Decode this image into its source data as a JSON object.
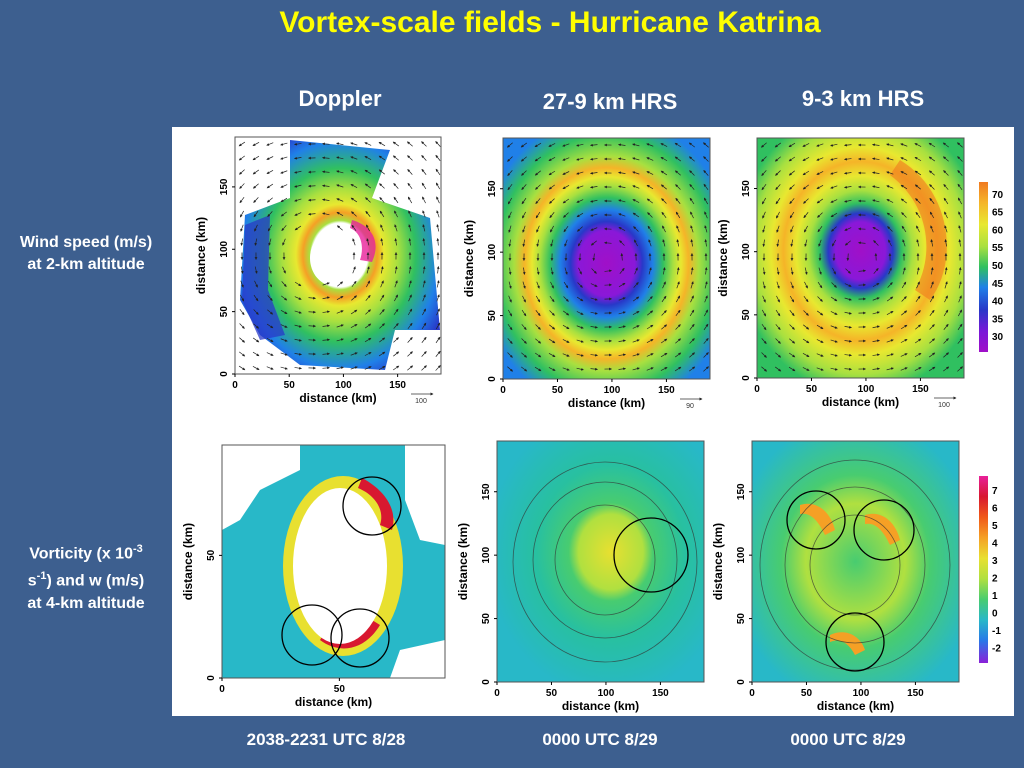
{
  "title": "Vortex-scale fields - Hurricane Katrina",
  "columns": [
    "Doppler",
    "27-9 km HRS",
    "9-3 km HRS"
  ],
  "row_labels": {
    "wind": [
      "Wind speed (m/s)",
      "at 2-km altitude"
    ],
    "vort": {
      "line1_pre": "Vorticity (x 10",
      "line1_sup": "-3",
      "line2_pre": "s",
      "line2_sup": "-1",
      "line2_post": ") and w (m/s)",
      "line3": "at 4-km altitude"
    }
  },
  "times": [
    "2038-2231 UTC 8/28",
    "0000 UTC 8/29",
    "0000 UTC 8/29"
  ],
  "colors": {
    "background": "#3d5f8f",
    "title": "#ffff00"
  },
  "chart_data": [
    {
      "type": "heatmap",
      "panel": "Doppler wind speed at 2-km altitude",
      "xlabel": "distance (km)",
      "ylabel": "distance (km)",
      "xticks": [
        "0",
        "50",
        "100",
        "150"
      ],
      "yticks": [
        "0",
        "50",
        "100",
        "150"
      ],
      "xlim": [
        0,
        190
      ],
      "ylim": [
        0,
        190
      ],
      "center_km": [
        75,
        95
      ],
      "vector_reference": "100"
    },
    {
      "type": "heatmap",
      "panel": "27-9 km HRS wind speed at 2-km altitude",
      "xlabel": "distance (km)",
      "ylabel": "distance (km)",
      "xticks": [
        "0",
        "50",
        "100",
        "150"
      ],
      "yticks": [
        "0",
        "50",
        "100",
        "150"
      ],
      "xlim": [
        0,
        190
      ],
      "ylim": [
        0,
        190
      ],
      "center_km": [
        95,
        95
      ],
      "vector_reference": "90"
    },
    {
      "type": "heatmap",
      "panel": "9-3 km HRS wind speed at 2-km altitude",
      "xlabel": "distance (km)",
      "ylabel": "distance (km)",
      "xticks": [
        "0",
        "50",
        "100",
        "150"
      ],
      "yticks": [
        "0",
        "50",
        "100",
        "150"
      ],
      "xlim": [
        0,
        190
      ],
      "ylim": [
        0,
        190
      ],
      "center_km": [
        95,
        95
      ],
      "vector_reference": "100"
    },
    {
      "type": "heatmap",
      "panel": "Doppler vorticity and w at 4-km altitude",
      "xlabel": "distance (km)",
      "ylabel": "distance (km)",
      "xticks": [
        "0",
        "50"
      ],
      "yticks": [
        "0",
        "50"
      ],
      "xlim": [
        0,
        95
      ],
      "ylim": [
        0,
        95
      ]
    },
    {
      "type": "heatmap",
      "panel": "27-9 km HRS vorticity and w at 4-km altitude",
      "xlabel": "distance (km)",
      "ylabel": "distance (km)",
      "xticks": [
        "0",
        "50",
        "100",
        "150"
      ],
      "yticks": [
        "0",
        "50",
        "100",
        "150"
      ],
      "xlim": [
        0,
        190
      ],
      "ylim": [
        0,
        190
      ]
    },
    {
      "type": "heatmap",
      "panel": "9-3 km HRS vorticity and w at 4-km altitude",
      "xlabel": "distance (km)",
      "ylabel": "distance (km)",
      "xticks": [
        "0",
        "50",
        "100",
        "150"
      ],
      "yticks": [
        "0",
        "50",
        "100",
        "150"
      ],
      "xlim": [
        0,
        190
      ],
      "ylim": [
        0,
        190
      ]
    }
  ],
  "colorbars": {
    "wind": {
      "labels": [
        "70",
        "65",
        "60",
        "55",
        "50",
        "45",
        "40",
        "35",
        "30"
      ],
      "colors": [
        "#f07a20",
        "#f5b428",
        "#e8e830",
        "#a8e040",
        "#30c060",
        "#2080e8",
        "#2838c8",
        "#7a18d8",
        "#a010c8"
      ]
    },
    "vorticity": {
      "labels": [
        "7",
        "6",
        "5",
        "4",
        "3",
        "2",
        "1",
        "0",
        "-1",
        "-2"
      ],
      "colors": [
        "#e8209a",
        "#d81830",
        "#f05818",
        "#f5a025",
        "#e8e030",
        "#b0e040",
        "#48cc70",
        "#28b8c8",
        "#2878e8",
        "#8a20d8"
      ]
    }
  }
}
